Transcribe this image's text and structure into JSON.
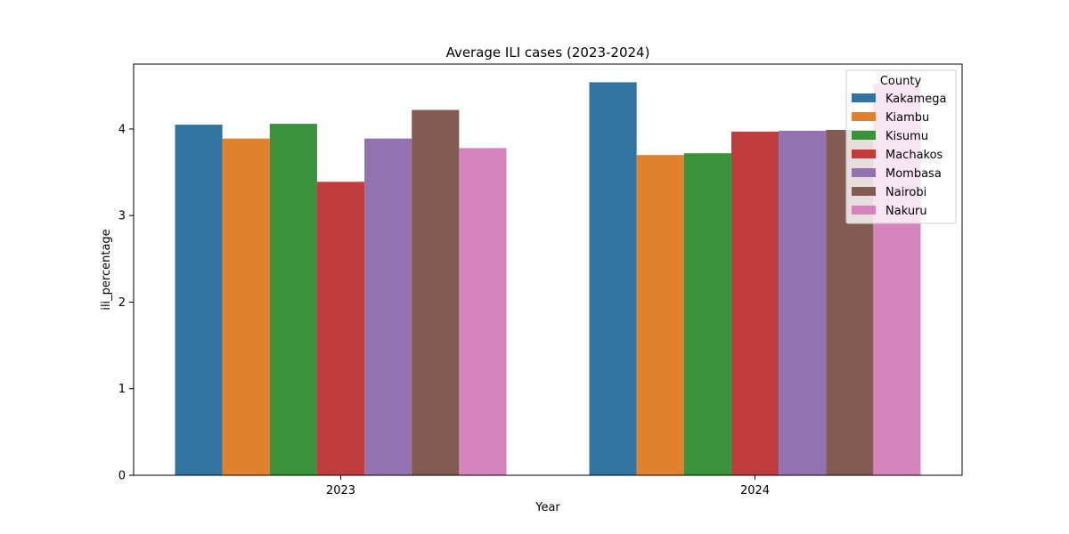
{
  "chart_data": {
    "type": "bar",
    "title": "Average ILI cases (2023-2024)",
    "xlabel": "Year",
    "ylabel": "ili_percentage",
    "categories": [
      "2023",
      "2024"
    ],
    "ylim": [
      0,
      4.75
    ],
    "yticks": [
      0,
      1,
      2,
      3,
      4
    ],
    "grid": false,
    "legend": {
      "title": "County",
      "placement": "top-right"
    },
    "series": [
      {
        "name": "Kakamega",
        "color": "#3274a1",
        "values": [
          4.05,
          4.54
        ]
      },
      {
        "name": "Kiambu",
        "color": "#e1812c",
        "values": [
          3.89,
          3.7
        ]
      },
      {
        "name": "Kisumu",
        "color": "#3a923a",
        "values": [
          4.06,
          3.72
        ]
      },
      {
        "name": "Machakos",
        "color": "#c03d3e",
        "values": [
          3.39,
          3.97
        ]
      },
      {
        "name": "Mombasa",
        "color": "#9372b2",
        "values": [
          3.89,
          3.98
        ]
      },
      {
        "name": "Nairobi",
        "color": "#845b53",
        "values": [
          4.22,
          3.99
        ]
      },
      {
        "name": "Nakuru",
        "color": "#d684bd",
        "values": [
          3.78,
          4.52
        ]
      }
    ]
  }
}
